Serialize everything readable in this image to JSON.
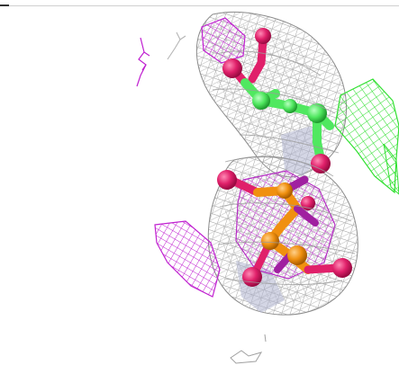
{
  "viewer": {
    "background": "#ffffff",
    "colors": {
      "mesh_grey": "#a8a8a8",
      "mesh_magenta": "#c020d0",
      "mesh_green": "#30e030",
      "carbon_green": "#50e860",
      "carbon_orange": "#f09010",
      "carbon_magenta": "#a020a0",
      "oxygen_red": "#e0206a",
      "slate_blue": "#b0b4d0"
    },
    "icons": []
  }
}
